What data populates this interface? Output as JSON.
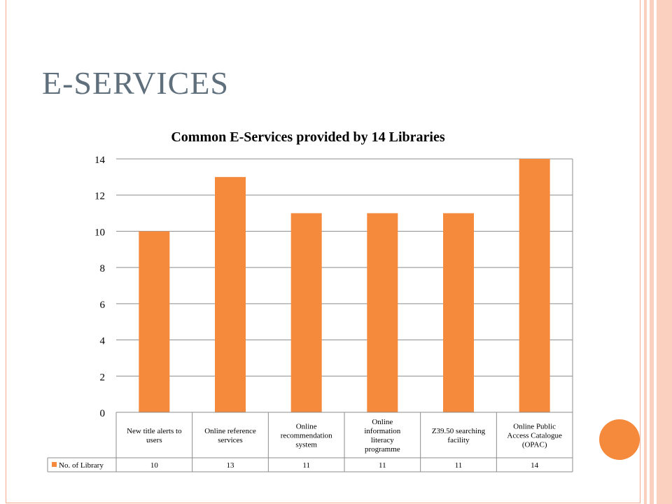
{
  "slide": {
    "title": "E-SERVICES",
    "colors": {
      "title": "#5f6f7c",
      "accent": "#f58a3d",
      "border": "#f4a98e",
      "strip": "#fcd0bf"
    }
  },
  "chart_data": {
    "type": "bar",
    "title": "Common E-Services provided by 14 Libraries",
    "categories": [
      [
        "New title alerts to",
        "users"
      ],
      [
        "Online reference",
        "services"
      ],
      [
        "Online",
        "recommendation",
        "system"
      ],
      [
        "Online",
        "information",
        "literacy",
        "programme"
      ],
      [
        "Z39.50 searching",
        "facility"
      ],
      [
        "Online Public",
        "Access Catalogue",
        "(OPAC)"
      ]
    ],
    "series": [
      {
        "name": "No. of Library",
        "color": "#f58a3d",
        "values": [
          10,
          13,
          11,
          11,
          11,
          14
        ]
      }
    ],
    "ylim": [
      0,
      14
    ],
    "yticks": [
      0,
      2,
      4,
      6,
      8,
      10,
      12,
      14
    ],
    "grid": true,
    "legend": "data-table",
    "data_table": true
  }
}
